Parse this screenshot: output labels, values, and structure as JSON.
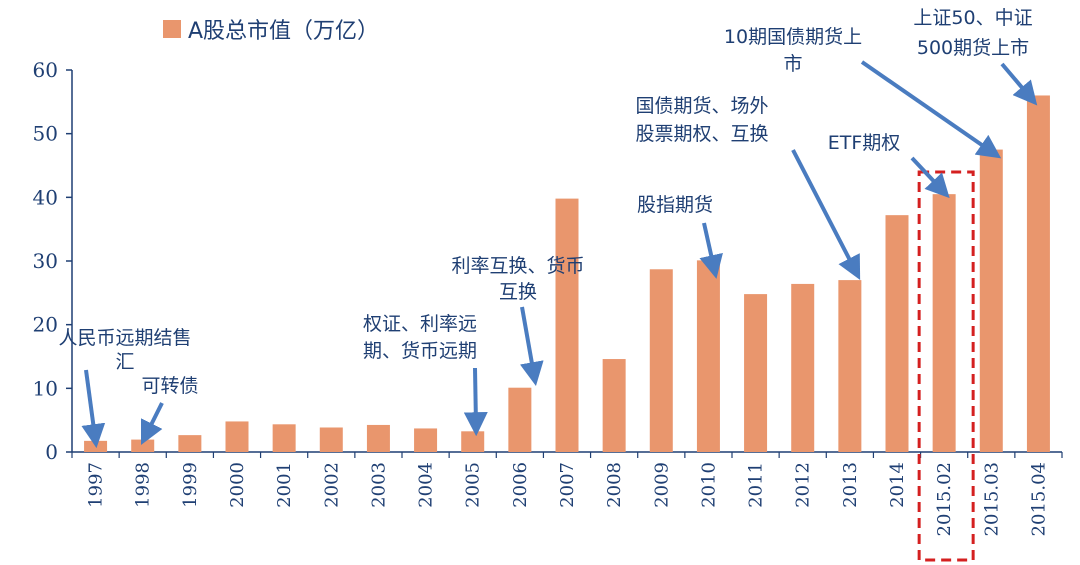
{
  "chart_data": {
    "type": "bar",
    "title": "",
    "xlabel": "",
    "ylabel": "",
    "ylim": [
      0,
      60
    ],
    "yticks": [
      0,
      10,
      20,
      30,
      40,
      50,
      60
    ],
    "grid": false,
    "legend": {
      "position": "top-left",
      "label": "A股总市值（万亿）"
    },
    "colors": {
      "bar": "#e9966d",
      "axis": "#1f3f73",
      "arrow": "#4a7cc0",
      "highlight": "#d42020"
    },
    "categories": [
      "1997",
      "1998",
      "1999",
      "2000",
      "2001",
      "2002",
      "2003",
      "2004",
      "2005",
      "2006",
      "2007",
      "2008",
      "2009",
      "2010",
      "2011",
      "2012",
      "2013",
      "2014",
      "2015.02",
      "2015.03",
      "2015.04"
    ],
    "series": [
      {
        "name": "A股总市值（万亿）",
        "values": [
          1.75,
          1.95,
          2.65,
          4.8,
          4.35,
          3.85,
          4.25,
          3.7,
          3.25,
          10.1,
          39.8,
          14.6,
          28.7,
          30.1,
          24.8,
          26.4,
          27.0,
          37.2,
          40.5,
          47.5,
          56.0
        ]
      }
    ],
    "highlight_category": "2015.02",
    "annotations": [
      {
        "lines": [
          "人民币远期结售",
          "汇"
        ],
        "target": "1997"
      },
      {
        "lines": [
          "可转债"
        ],
        "target": "1998"
      },
      {
        "lines": [
          "权证、利率远",
          "期、货币远期"
        ],
        "target": "2005"
      },
      {
        "lines": [
          "利率互换、货币",
          "互换"
        ],
        "target": "2006"
      },
      {
        "lines": [
          "股指期货"
        ],
        "target": "2010"
      },
      {
        "lines": [
          "国债期货、场外",
          "股票期权、互换"
        ],
        "target": "2013"
      },
      {
        "lines": [
          "ETF期权"
        ],
        "target": "2015.02"
      },
      {
        "lines": [
          "10期国债期货上",
          "市"
        ],
        "target": "2015.03"
      },
      {
        "lines": [
          "上证50、中证",
          "500期货上市"
        ],
        "target": "2015.04"
      }
    ]
  }
}
